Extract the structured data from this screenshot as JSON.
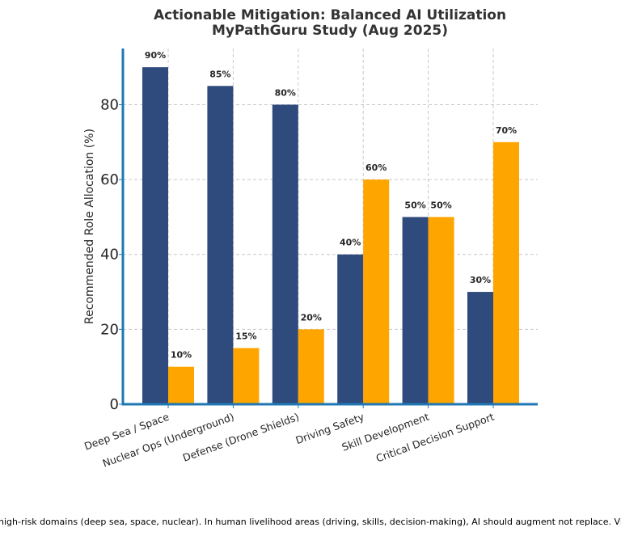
{
  "chart_data": {
    "type": "bar",
    "title": "Actionable Mitigation: Balanced AI Utilization",
    "subtitle": "MyPathGuru Study (Aug 2025)",
    "xlabel": "",
    "ylabel": "Recommended Role Allocation (%)",
    "ylim": [
      0,
      95
    ],
    "yticks": [
      0,
      20,
      40,
      60,
      80
    ],
    "grid": true,
    "categories": [
      "Deep Sea / Space",
      "Nuclear Ops (Underground)",
      "Defense (Drone Shields)",
      "Driving Safety",
      "Skill Development",
      "Critical Decision Support"
    ],
    "series": [
      {
        "values": [
          90,
          85,
          80,
          40,
          50,
          30
        ],
        "color": "#2f4a7c"
      },
      {
        "values": [
          10,
          15,
          20,
          60,
          50,
          70
        ],
        "color": "#ffa500"
      }
    ],
    "value_suffix": "%"
  },
  "footer_text": "high-risk domains (deep sea, space, nuclear). In human livelihood areas (driving, skills, decision-making), AI should augment not replace. Visua"
}
